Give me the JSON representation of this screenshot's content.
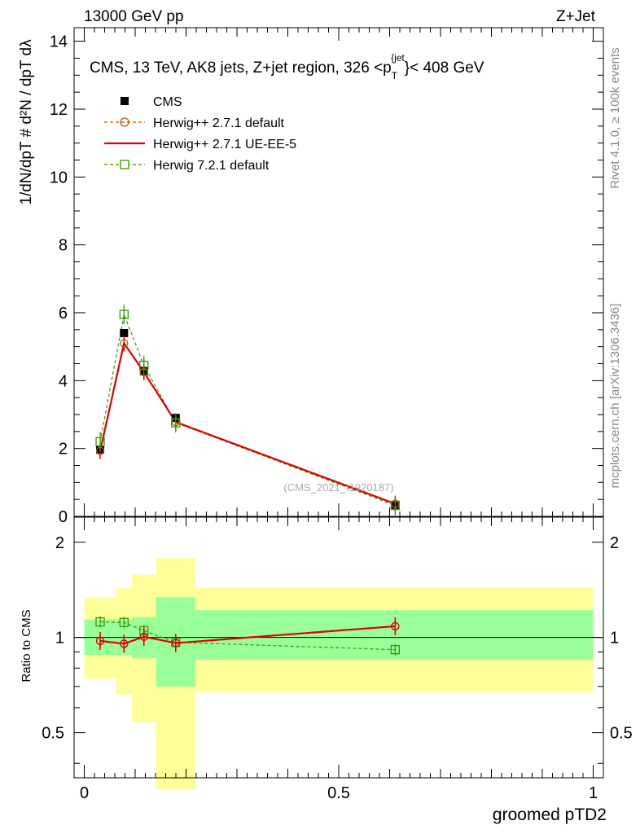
{
  "header": {
    "left_title": "13000 GeV pp",
    "right_title": "Z+Jet",
    "plot_title_main": "CMS, 13 TeV, AK8 jets, Z+jet region, 326 <p",
    "plot_title_sub": "T",
    "plot_title_sup": "{jet",
    "plot_title_end": "}< 408 GeV"
  },
  "side_labels": {
    "rivet": "Rivet 4.1.0, ≥ 100k events",
    "mcplots": "mcplots.cern.ch [arXiv:1306.3436]"
  },
  "watermark": "(CMS_2021_I1920187)",
  "colors": {
    "cms": "#000000",
    "herwigpp_default": "#b35900",
    "herwigpp_ueee5": "#e00000",
    "herwig7": "#339900",
    "band_inner": "#99ff99",
    "band_outer": "#ffff99"
  },
  "chart_data": [
    {
      "type": "line",
      "title": "CMS, 13 TeV, AK8 jets, Z+jet region, 326 < pT{jet} < 408 GeV",
      "ylabel": "1/dN/dpT # d²N / dpT dλ",
      "xlim": [
        -0.02,
        1.02
      ],
      "ylim": [
        0,
        14.4
      ],
      "yticks": [
        "0",
        "2",
        "4",
        "6",
        "8",
        "10",
        "12",
        "14"
      ],
      "x": [
        0.03125,
        0.07812,
        0.11719,
        0.17969,
        0.61094
      ],
      "x_edges": [
        0.0,
        0.0625,
        0.09375,
        0.14063,
        0.21875,
        1.0
      ],
      "series": [
        {
          "name": "CMS",
          "values": [
            1.97,
            5.4,
            4.28,
            2.9,
            0.34
          ],
          "marker": "square-filled"
        },
        {
          "name": "Herwig++ 2.7.1 default",
          "values": [
            1.93,
            5.1,
            4.25,
            2.78,
            0.37
          ],
          "marker": "circle-open"
        },
        {
          "name": "Herwig++ 2.7.1 UE-EE-5",
          "values": [
            1.93,
            5.1,
            4.25,
            2.78,
            0.37
          ],
          "marker": "line"
        },
        {
          "name": "Herwig 7.2.1 default",
          "values": [
            2.2,
            5.95,
            4.45,
            2.76,
            0.32
          ],
          "marker": "square-open"
        }
      ]
    },
    {
      "type": "line",
      "title": "",
      "xlabel": "groomed pTD2",
      "ylabel": "Ratio to CMS",
      "xlim": [
        -0.02,
        1.02
      ],
      "ylim": [
        0.36,
        2.4
      ],
      "xticks": [
        "0",
        "0.5",
        "1"
      ],
      "yticks": [
        "0.5",
        "1",
        "2"
      ],
      "bands": {
        "inner": [
          [
            0.88,
            1.14
          ],
          [
            0.88,
            1.14
          ],
          [
            0.86,
            1.16
          ],
          [
            0.7,
            1.34
          ],
          [
            0.85,
            1.22
          ]
        ],
        "outer": [
          [
            0.74,
            1.34
          ],
          [
            0.66,
            1.43
          ],
          [
            0.54,
            1.58
          ],
          [
            0.33,
            1.78
          ],
          [
            0.67,
            1.44
          ]
        ]
      },
      "series": [
        {
          "name": "Herwig++ 2.7.1 UE-EE-5",
          "values": [
            0.975,
            0.955,
            1.005,
            0.96,
            1.085
          ]
        },
        {
          "name": "Herwig 7.2.1 default",
          "values": [
            1.12,
            1.115,
            1.05,
            0.965,
            0.915
          ]
        }
      ]
    }
  ]
}
